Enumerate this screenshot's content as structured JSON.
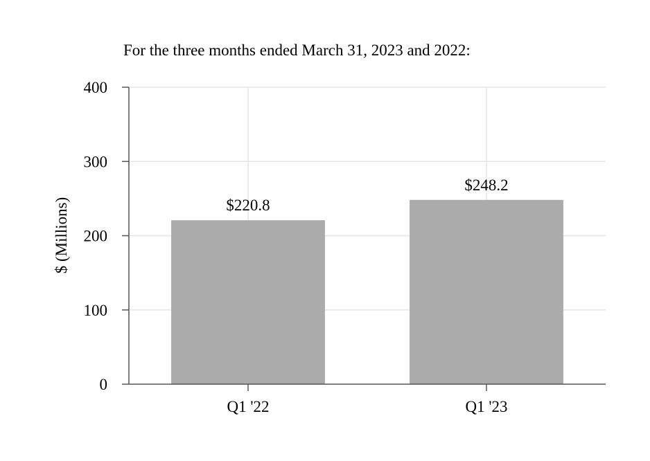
{
  "chart_data": {
    "type": "bar",
    "title": "For the three months ended March 31, 2023 and 2022:",
    "xlabel": "",
    "ylabel": "$ (Millions)",
    "categories": [
      "Q1 '22",
      "Q1 '23"
    ],
    "values": [
      220.8,
      248.2
    ],
    "data_labels": [
      "$220.8",
      "$248.2"
    ],
    "ylim": [
      0,
      400
    ],
    "yticks": [
      0,
      100,
      200,
      300,
      400
    ],
    "grid": true,
    "legend": "none",
    "colors": {
      "bar": "#ababab",
      "grid": "#e6e6e6",
      "axis": "#555555"
    }
  }
}
